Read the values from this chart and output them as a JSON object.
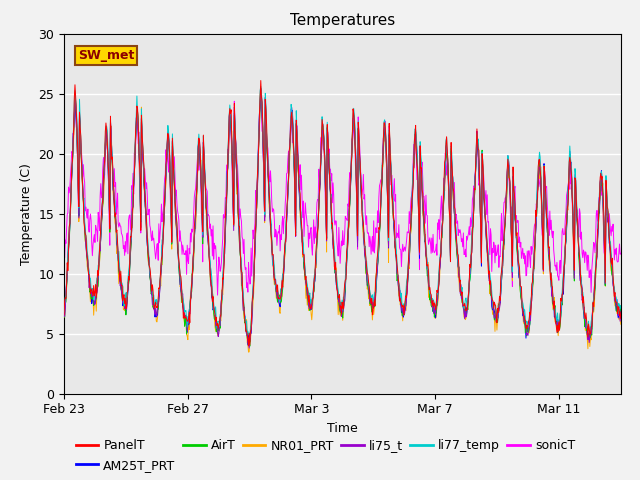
{
  "title": "Temperatures",
  "xlabel": "Time",
  "ylabel": "Temperature (C)",
  "ylim": [
    0,
    30
  ],
  "annotation_text": "SW_met",
  "legend_entries": [
    "PanelT",
    "AM25T_PRT",
    "AirT",
    "NR01_PRT",
    "li75_t",
    "li77_temp",
    "sonicT"
  ],
  "legend_colors": [
    "#ff0000",
    "#0000ff",
    "#00cc00",
    "#ffaa00",
    "#9900cc",
    "#00cccc",
    "#ff00ff"
  ],
  "background_color": "#e8e8e8",
  "x_tick_labels": [
    "Feb 23",
    "Feb 27",
    "Mar 3",
    "Mar 7",
    "Mar 11"
  ],
  "x_tick_positions": [
    0,
    4,
    8,
    12,
    16
  ],
  "title_fontsize": 11,
  "label_fontsize": 9,
  "legend_fontsize": 9,
  "figwidth": 6.4,
  "figheight": 4.8,
  "fig_bgcolor": "#f2f2f2"
}
